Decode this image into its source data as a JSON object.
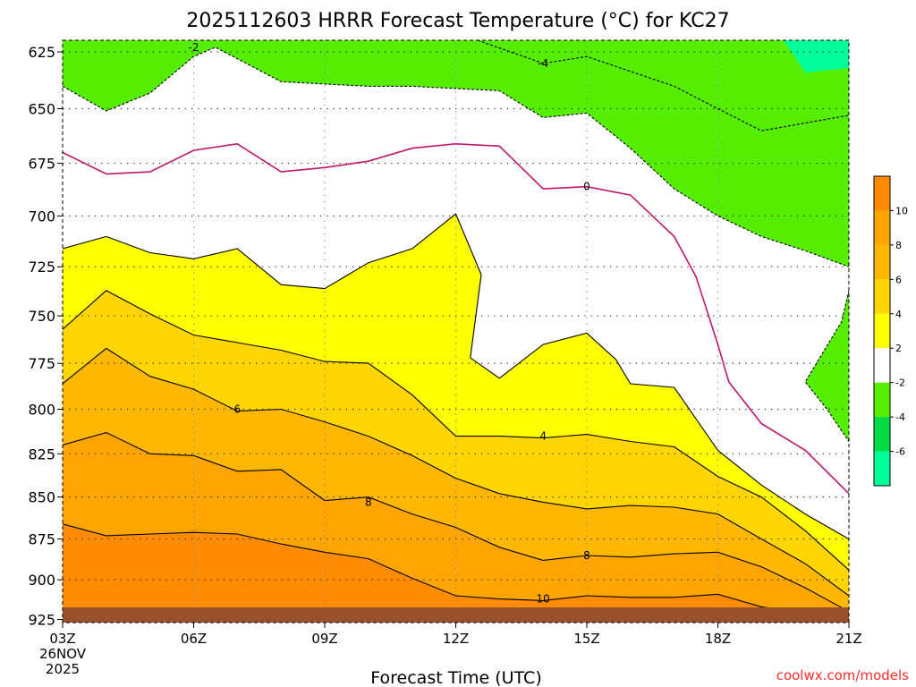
{
  "chart_data": {
    "type": "heatmap",
    "title": "2025112603 HRRR Forecast Temperature (°C) for KC27",
    "xlabel": "Forecast Time (UTC)",
    "ylabel": "",
    "credit": "coolwx.com/models",
    "credit_color": "#ff2a2a",
    "x_ticks": [
      {
        "label": "03Z",
        "time": "2025-11-26T03:00Z"
      },
      {
        "label": "06Z",
        "time": "2025-11-26T06:00Z"
      },
      {
        "label": "09Z",
        "time": "2025-11-26T09:00Z"
      },
      {
        "label": "12Z",
        "time": "2025-11-26T12:00Z"
      },
      {
        "label": "15Z",
        "time": "2025-11-26T15:00Z"
      },
      {
        "label": "18Z",
        "time": "2025-11-26T18:00Z"
      },
      {
        "label": "21Z",
        "time": "2025-11-26T21:00Z"
      }
    ],
    "x_first_sublabels": [
      "26NOV",
      "2025"
    ],
    "xlim": [
      "2025-11-26T03:00Z",
      "2025-11-26T21:00Z"
    ],
    "y_ticks": [
      625,
      650,
      675,
      700,
      725,
      750,
      775,
      800,
      825,
      850,
      875,
      900,
      925
    ],
    "y_axis": "pressure (hPa), decreasing upward, log scale",
    "ylim": [
      927,
      620
    ],
    "grid": true,
    "colorbar": {
      "levels": [
        "10",
        "8",
        "6",
        "4",
        "2",
        "-2",
        "-4",
        "-6"
      ],
      "bins": [
        {
          "range": "> 10",
          "color": "#ff8c00"
        },
        {
          "range": "8 to 10",
          "color": "#ffa500"
        },
        {
          "range": "6 to 8",
          "color": "#ffb700"
        },
        {
          "range": "4 to 6",
          "color": "#ffd500"
        },
        {
          "range": "2 to 4",
          "color": "#ffff00"
        },
        {
          "range": "-2 to 2",
          "color": "#ffffff"
        },
        {
          "range": "-4 to -2",
          "color": "#55ee00"
        },
        {
          "range": "-6 to -4",
          "color": "#00dd44"
        },
        {
          "range": "< -6",
          "color": "#00ff99"
        }
      ]
    },
    "ground_color": "#9a5028",
    "contours": [
      {
        "level": -4,
        "label": "-4",
        "style": "dashed",
        "color": "#000000",
        "points": [
          [
            "2025-11-26T12:30Z",
            620
          ],
          [
            "2025-11-26T14:00Z",
            630
          ],
          [
            "2025-11-26T15:00Z",
            627
          ],
          [
            "2025-11-26T17:00Z",
            640
          ],
          [
            "2025-11-26T18:00Z",
            650
          ],
          [
            "2025-11-26T19:00Z",
            660
          ],
          [
            "2025-11-26T21:00Z",
            653
          ]
        ]
      },
      {
        "level": -2,
        "label": "-2",
        "style": "dashed",
        "color": "#000000",
        "points": [
          [
            "2025-11-26T03:00Z",
            640
          ],
          [
            "2025-11-26T04:00Z",
            651
          ],
          [
            "2025-11-26T05:00Z",
            643
          ],
          [
            "2025-11-26T06:00Z",
            627
          ],
          [
            "2025-11-26T06:30Z",
            623
          ],
          [
            "2025-11-26T08:00Z",
            638
          ],
          [
            "2025-11-26T09:00Z",
            639
          ],
          [
            "2025-11-26T10:00Z",
            640
          ],
          [
            "2025-11-26T11:00Z",
            640
          ],
          [
            "2025-11-26T12:00Z",
            641
          ],
          [
            "2025-11-26T13:00Z",
            642
          ],
          [
            "2025-11-26T14:00Z",
            654
          ],
          [
            "2025-11-26T15:00Z",
            652
          ],
          [
            "2025-11-26T16:00Z",
            668
          ],
          [
            "2025-11-26T17:00Z",
            687
          ],
          [
            "2025-11-26T18:00Z",
            700
          ],
          [
            "2025-11-26T19:00Z",
            710
          ],
          [
            "2025-11-26T20:00Z",
            717
          ],
          [
            "2025-11-26T21:00Z",
            725
          ]
        ]
      },
      {
        "level": -2,
        "label": "",
        "style": "dashed",
        "color": "#000000",
        "points": [
          [
            "2025-11-26T21:00Z",
            737
          ],
          [
            "2025-11-26T20:50Z",
            753
          ],
          [
            "2025-11-26T20:00Z",
            785
          ],
          [
            "2025-11-26T20:30Z",
            800
          ],
          [
            "2025-11-26T21:00Z",
            818
          ]
        ]
      },
      {
        "level": 0,
        "label": "0",
        "style": "solid",
        "color": "#c0156a",
        "points": [
          [
            "2025-11-26T03:00Z",
            670
          ],
          [
            "2025-11-26T04:00Z",
            680
          ],
          [
            "2025-11-26T05:00Z",
            679
          ],
          [
            "2025-11-26T06:00Z",
            669
          ],
          [
            "2025-11-26T07:00Z",
            666
          ],
          [
            "2025-11-26T08:00Z",
            679
          ],
          [
            "2025-11-26T09:00Z",
            677
          ],
          [
            "2025-11-26T10:00Z",
            674
          ],
          [
            "2025-11-26T11:00Z",
            668
          ],
          [
            "2025-11-26T12:00Z",
            666
          ],
          [
            "2025-11-26T13:00Z",
            667
          ],
          [
            "2025-11-26T14:00Z",
            687
          ],
          [
            "2025-11-26T15:00Z",
            686
          ],
          [
            "2025-11-26T16:00Z",
            690
          ],
          [
            "2025-11-26T17:00Z",
            710
          ],
          [
            "2025-11-26T17:30Z",
            730
          ],
          [
            "2025-11-26T18:00Z",
            765
          ],
          [
            "2025-11-26T18:15Z",
            785
          ],
          [
            "2025-11-26T19:00Z",
            808
          ],
          [
            "2025-11-26T20:00Z",
            823
          ],
          [
            "2025-11-26T21:00Z",
            848
          ]
        ]
      },
      {
        "level": 2,
        "label": "",
        "style": "solid",
        "color": "#000000",
        "points": [
          [
            "2025-11-26T03:00Z",
            716
          ],
          [
            "2025-11-26T04:00Z",
            710
          ],
          [
            "2025-11-26T05:00Z",
            718
          ],
          [
            "2025-11-26T06:00Z",
            721
          ],
          [
            "2025-11-26T07:00Z",
            716
          ],
          [
            "2025-11-26T08:00Z",
            734
          ],
          [
            "2025-11-26T09:00Z",
            736
          ],
          [
            "2025-11-26T10:00Z",
            723
          ],
          [
            "2025-11-26T11:00Z",
            716
          ],
          [
            "2025-11-26T12:00Z",
            699
          ],
          [
            "2025-11-26T12:35Z",
            729
          ],
          [
            "2025-11-26T12:20Z",
            772
          ],
          [
            "2025-11-26T13:00Z",
            783
          ],
          [
            "2025-11-26T14:00Z",
            765
          ],
          [
            "2025-11-26T15:00Z",
            759
          ],
          [
            "2025-11-26T15:40Z",
            773
          ],
          [
            "2025-11-26T16:00Z",
            786
          ],
          [
            "2025-11-26T17:00Z",
            788
          ],
          [
            "2025-11-26T18:00Z",
            823
          ],
          [
            "2025-11-26T19:00Z",
            843
          ],
          [
            "2025-11-26T20:00Z",
            860
          ],
          [
            "2025-11-26T21:00Z",
            875
          ]
        ]
      },
      {
        "level": 4,
        "label": "4",
        "style": "solid",
        "color": "#000000",
        "points": [
          [
            "2025-11-26T03:00Z",
            757
          ],
          [
            "2025-11-26T04:00Z",
            737
          ],
          [
            "2025-11-26T05:00Z",
            749
          ],
          [
            "2025-11-26T06:00Z",
            760
          ],
          [
            "2025-11-26T07:00Z",
            764
          ],
          [
            "2025-11-26T08:00Z",
            768
          ],
          [
            "2025-11-26T09:00Z",
            774
          ],
          [
            "2025-11-26T10:00Z",
            775
          ],
          [
            "2025-11-26T11:00Z",
            792
          ],
          [
            "2025-11-26T12:00Z",
            815
          ],
          [
            "2025-11-26T13:00Z",
            815
          ],
          [
            "2025-11-26T14:00Z",
            816
          ],
          [
            "2025-11-26T15:00Z",
            814
          ],
          [
            "2025-11-26T16:00Z",
            818
          ],
          [
            "2025-11-26T17:00Z",
            821
          ],
          [
            "2025-11-26T18:00Z",
            838
          ],
          [
            "2025-11-26T19:00Z",
            850
          ],
          [
            "2025-11-26T20:00Z",
            870
          ],
          [
            "2025-11-26T21:00Z",
            894
          ]
        ]
      },
      {
        "level": 6,
        "label": "6",
        "style": "solid",
        "color": "#000000",
        "points": [
          [
            "2025-11-26T03:00Z",
            786
          ],
          [
            "2025-11-26T04:00Z",
            767
          ],
          [
            "2025-11-26T05:00Z",
            782
          ],
          [
            "2025-11-26T06:00Z",
            789
          ],
          [
            "2025-11-26T07:00Z",
            801
          ],
          [
            "2025-11-26T08:00Z",
            800
          ],
          [
            "2025-11-26T09:00Z",
            807
          ],
          [
            "2025-11-26T10:00Z",
            815
          ],
          [
            "2025-11-26T11:00Z",
            826
          ],
          [
            "2025-11-26T12:00Z",
            839
          ],
          [
            "2025-11-26T13:00Z",
            848
          ],
          [
            "2025-11-26T14:00Z",
            853
          ],
          [
            "2025-11-26T15:00Z",
            857
          ],
          [
            "2025-11-26T16:00Z",
            855
          ],
          [
            "2025-11-26T17:00Z",
            856
          ],
          [
            "2025-11-26T18:00Z",
            860
          ],
          [
            "2025-11-26T19:00Z",
            875
          ],
          [
            "2025-11-26T20:00Z",
            890
          ],
          [
            "2025-11-26T21:00Z",
            910
          ]
        ]
      },
      {
        "level": 8,
        "label": "8",
        "style": "solid",
        "color": "#000000",
        "points": [
          [
            "2025-11-26T03:00Z",
            820
          ],
          [
            "2025-11-26T04:00Z",
            813
          ],
          [
            "2025-11-26T05:00Z",
            825
          ],
          [
            "2025-11-26T06:00Z",
            826
          ],
          [
            "2025-11-26T07:00Z",
            835
          ],
          [
            "2025-11-26T08:00Z",
            834
          ],
          [
            "2025-11-26T09:00Z",
            852
          ],
          [
            "2025-11-26T10:00Z",
            850
          ],
          [
            "2025-11-26T11:00Z",
            860
          ],
          [
            "2025-11-26T12:00Z",
            868
          ],
          [
            "2025-11-26T13:00Z",
            880
          ],
          [
            "2025-11-26T14:00Z",
            888
          ],
          [
            "2025-11-26T15:00Z",
            885
          ],
          [
            "2025-11-26T16:00Z",
            886
          ],
          [
            "2025-11-26T17:00Z",
            884
          ],
          [
            "2025-11-26T18:00Z",
            883
          ],
          [
            "2025-11-26T19:00Z",
            892
          ],
          [
            "2025-11-26T20:00Z",
            905
          ],
          [
            "2025-11-26T21:00Z",
            920
          ]
        ]
      },
      {
        "level": 10,
        "label": "10",
        "style": "solid",
        "color": "#000000",
        "points": [
          [
            "2025-11-26T03:00Z",
            866
          ],
          [
            "2025-11-26T04:00Z",
            873
          ],
          [
            "2025-11-26T05:00Z",
            872
          ],
          [
            "2025-11-26T06:00Z",
            871
          ],
          [
            "2025-11-26T07:00Z",
            872
          ],
          [
            "2025-11-26T08:00Z",
            878
          ],
          [
            "2025-11-26T09:00Z",
            883
          ],
          [
            "2025-11-26T10:00Z",
            887
          ],
          [
            "2025-11-26T11:00Z",
            899
          ],
          [
            "2025-11-26T12:00Z",
            910
          ],
          [
            "2025-11-26T13:00Z",
            912
          ],
          [
            "2025-11-26T14:00Z",
            913
          ],
          [
            "2025-11-26T15:00Z",
            910
          ],
          [
            "2025-11-26T16:00Z",
            911
          ],
          [
            "2025-11-26T17:00Z",
            911
          ],
          [
            "2025-11-26T18:00Z",
            909
          ],
          [
            "2025-11-26T19:00Z",
            917
          ],
          [
            "2025-11-26T20:00Z",
            921
          ],
          [
            "2025-11-26T21:00Z",
            923
          ]
        ]
      }
    ]
  }
}
